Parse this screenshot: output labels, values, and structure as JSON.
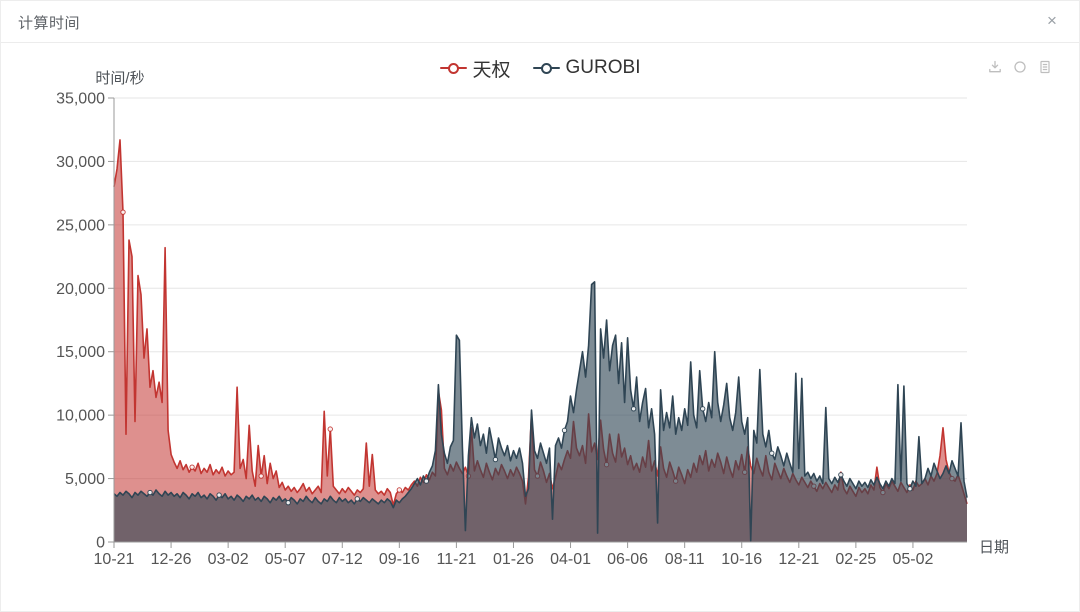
{
  "window": {
    "title": "计算时间",
    "close_label": "×"
  },
  "legend": {
    "items": [
      {
        "name": "天权",
        "color": "#c23531"
      },
      {
        "name": "GUROBI",
        "color": "#2f4554"
      }
    ]
  },
  "toolbox": {
    "icons": [
      "save-as-image",
      "restore",
      "data-view"
    ]
  },
  "chart_data": {
    "type": "line",
    "title": "计算时间",
    "y_axis_name": "时间/秒",
    "x_axis_name": "日期",
    "ylim": [
      0,
      35000
    ],
    "grid": true,
    "legend_position": "top-center",
    "area_style": true,
    "y_ticks": [
      0,
      5000,
      10000,
      15000,
      20000,
      25000,
      30000,
      35000
    ],
    "y_tick_labels": [
      "0",
      "5,000",
      "10,000",
      "15,000",
      "20,000",
      "25,000",
      "30,000",
      "35,000"
    ],
    "x_tick_labels": [
      "10-21",
      "12-26",
      "03-02",
      "05-07",
      "07-12",
      "09-16",
      "11-21",
      "01-26",
      "04-01",
      "06-06",
      "08-11",
      "10-16",
      "12-21",
      "02-25",
      "05-02"
    ],
    "tick_point_interval": 19,
    "axis_color": "#999999",
    "grid_color": "#e6e6e6",
    "label_color": "#555555",
    "series": [
      {
        "name": "天权",
        "color": "#c23531",
        "fill": "rgba(194,53,49,0.55)",
        "values": [
          28000,
          29400,
          31700,
          26000,
          8500,
          23800,
          22500,
          9500,
          21000,
          19500,
          14500,
          16800,
          12200,
          13500,
          11400,
          12600,
          11000,
          23200,
          8800,
          6900,
          6300,
          5800,
          6400,
          5700,
          6100,
          5500,
          5900,
          5600,
          6200,
          5400,
          5800,
          5500,
          6100,
          5300,
          5700,
          5400,
          5900,
          5200,
          5600,
          5300,
          5500,
          12200,
          5800,
          6500,
          5000,
          9200,
          5600,
          4400,
          7600,
          5200,
          6800,
          4600,
          6200,
          5000,
          5600,
          4300,
          4700,
          4100,
          4400,
          4000,
          4300,
          3900,
          4200,
          4600,
          4000,
          4300,
          3800,
          4100,
          4400,
          3900,
          10300,
          5200,
          8900,
          4400,
          4100,
          3800,
          4200,
          3900,
          4300,
          4000,
          3700,
          4100,
          3900,
          4200,
          7800,
          4400,
          6900,
          4100,
          3800,
          4000,
          3700,
          4200,
          3900,
          2900,
          3800,
          4100,
          3900,
          4300,
          4100,
          4500,
          4800,
          4400,
          5100,
          4700,
          5300,
          4900,
          5500,
          5200,
          11900,
          10400,
          5800,
          5300,
          6100,
          5600,
          6300,
          5800,
          5400,
          5900,
          5200,
          9000,
          5600,
          6400,
          5700,
          5100,
          6200,
          5500,
          4900,
          5800,
          5300,
          6100,
          5600,
          5000,
          5700,
          5200,
          5900,
          5400,
          4800,
          3000,
          5100,
          10100,
          5700,
          5200,
          6300,
          5600,
          4700,
          5400,
          4200,
          5100,
          6200,
          5700,
          6500,
          7200,
          6600,
          9500,
          7400,
          6800,
          7600,
          6200,
          10100,
          7100,
          7800,
          6500,
          9600,
          7300,
          6100,
          8500,
          7000,
          6300,
          8500,
          6700,
          7400,
          6100,
          6800,
          5700,
          6200,
          5500,
          6700,
          5900,
          8000,
          5600,
          6400,
          5200,
          7500,
          5800,
          5100,
          6300,
          5600,
          4800,
          5900,
          5300,
          4600,
          5700,
          5100,
          6200,
          5500,
          6800,
          6100,
          7200,
          5600,
          6500,
          5900,
          7000,
          6300,
          5400,
          6700,
          5800,
          5100,
          6400,
          5700,
          6900,
          5500,
          7500,
          6000,
          5400,
          6600,
          5800,
          5200,
          6800,
          5500,
          4900,
          6200,
          5600,
          5000,
          5800,
          5200,
          4700,
          5400,
          4900,
          4500,
          5100,
          4700,
          4300,
          4800,
          4400,
          4000,
          4600,
          4200,
          4700,
          4300,
          3900,
          4500,
          4100,
          5500,
          4200,
          3800,
          4400,
          4000,
          3600,
          4300,
          3900,
          4200,
          3800,
          4500,
          4100,
          5900,
          4300,
          3900,
          4600,
          4200,
          4800,
          4400,
          4000,
          4700,
          4300,
          3900,
          4500,
          4100,
          4800,
          4400,
          4600,
          5000,
          4500,
          5200,
          4800,
          5400,
          6800,
          9000,
          6500,
          5500,
          5000,
          4800,
          5300,
          4600,
          3800,
          3000
        ]
      },
      {
        "name": "GUROBI",
        "color": "#2f4554",
        "fill": "rgba(47,69,84,0.62)",
        "values": [
          3800,
          3600,
          3900,
          3700,
          4000,
          3800,
          3500,
          3900,
          3700,
          4000,
          3800,
          3600,
          3900,
          3700,
          4100,
          3800,
          3600,
          4000,
          3700,
          3900,
          3600,
          3800,
          3500,
          3900,
          3700,
          3400,
          3800,
          3600,
          3900,
          3500,
          3700,
          3400,
          3800,
          3600,
          3300,
          3700,
          3500,
          3800,
          3400,
          3600,
          3300,
          3700,
          3500,
          3200,
          3600,
          3400,
          3700,
          3300,
          3500,
          3200,
          3600,
          3400,
          3100,
          3500,
          3300,
          3600,
          3200,
          3400,
          3100,
          3500,
          3300,
          3000,
          3400,
          3200,
          3600,
          3300,
          3100,
          3500,
          3200,
          3000,
          3400,
          3200,
          3600,
          3300,
          3100,
          3500,
          3200,
          3400,
          3100,
          3300,
          3000,
          3400,
          3200,
          3500,
          3300,
          3100,
          3400,
          3200,
          3000,
          3300,
          3100,
          3400,
          3200,
          2700,
          3300,
          3100,
          3400,
          3600,
          3900,
          4200,
          4600,
          5000,
          4500,
          5200,
          4800,
          5500,
          6000,
          7200,
          12400,
          8500,
          7000,
          6200,
          7500,
          8000,
          16300,
          15900,
          7500,
          900,
          6800,
          9800,
          8200,
          9300,
          7600,
          8500,
          7000,
          9000,
          7800,
          6500,
          8200,
          7400,
          6800,
          7600,
          6400,
          7200,
          6600,
          7400,
          6200,
          3600,
          4200,
          10400,
          7200,
          6600,
          7800,
          7000,
          6200,
          7400,
          1800,
          7600,
          8200,
          7400,
          8800,
          9500,
          11500,
          10200,
          12000,
          13500,
          15000,
          13000,
          15500,
          20300,
          20500,
          700,
          16800,
          14500,
          17500,
          13500,
          15500,
          16300,
          12500,
          15700,
          11000,
          16100,
          12000,
          10500,
          13000,
          9500,
          11000,
          12100,
          9000,
          10500,
          8500,
          1500,
          12000,
          8800,
          10200,
          9000,
          11500,
          8500,
          9800,
          8800,
          10500,
          9200,
          14200,
          10000,
          9000,
          13500,
          10500,
          9500,
          11000,
          9800,
          15000,
          11000,
          9500,
          10800,
          12500,
          9800,
          8800,
          10200,
          13000,
          9500,
          8500,
          9800,
          100,
          8800,
          7800,
          13600,
          8500,
          7500,
          8800,
          7000,
          6500,
          7500,
          6800,
          6000,
          7000,
          6200,
          5500,
          13300,
          5800,
          12900,
          5200,
          5500,
          5000,
          5400,
          4800,
          5200,
          4600,
          10600,
          5000,
          4600,
          5100,
          4700,
          5300,
          4800,
          4400,
          5000,
          4600,
          4200,
          4800,
          4400,
          4700,
          4300,
          4900,
          4500,
          5100,
          4600,
          4200,
          4800,
          4400,
          5000,
          4600,
          12400,
          4800,
          12300,
          4600,
          4200,
          4800,
          4400,
          8300,
          4600,
          5000,
          5800,
          5200,
          6200,
          5600,
          5000,
          5400,
          6000,
          5400,
          6400,
          5800,
          5200,
          9400,
          4800,
          3500
        ]
      }
    ]
  }
}
